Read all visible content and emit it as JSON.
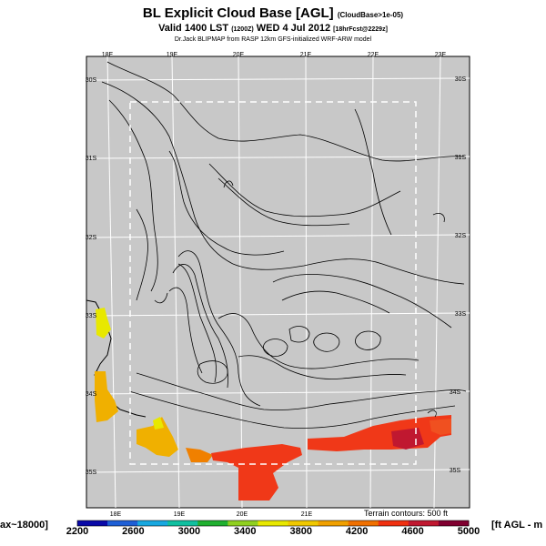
{
  "header": {
    "title": "BL Explicit Cloud Base [AGL]",
    "title_suffix": "(CloudBase>1e-05)",
    "subtitle": "Valid 1400 LST",
    "subtitle_code": "(1200Z)",
    "subtitle_date": "WED 4 Jul 2012",
    "subtitle_suffix": "[18hrFcst@2229z]",
    "credit": "Dr.Jack BLIPMAP from RASP 12km GFS-initialized WRF-ARW model"
  },
  "map": {
    "lon_labels_top": [
      "18E",
      "19E",
      "20E",
      "21E",
      "22E",
      "23E"
    ],
    "lon_labels_bottom": [
      "18E",
      "19E",
      "20E",
      "21E"
    ],
    "lat_labels_left": [
      "30S",
      "31S",
      "32S",
      "33S",
      "34S",
      "35S"
    ],
    "lat_labels_right": [
      "30S",
      "31S",
      "32S",
      "33S",
      "34S",
      "35S"
    ],
    "terrain_note": "Terrain contours: 500 ft",
    "land_color": "#c8c8c8"
  },
  "colorbar": {
    "left_text": "ax~18000]",
    "right_text": "[ft AGL - m",
    "tick_labels": [
      "2200",
      "2600",
      "3000",
      "3400",
      "3800",
      "4200",
      "4600",
      "5000"
    ],
    "colors": [
      "#0a0aa8",
      "#1e5fd6",
      "#18a8e0",
      "#10c0a0",
      "#20b030",
      "#90d020",
      "#e8e800",
      "#f0c800",
      "#f0a000",
      "#f07000",
      "#f03010",
      "#c01830",
      "#800030"
    ]
  }
}
